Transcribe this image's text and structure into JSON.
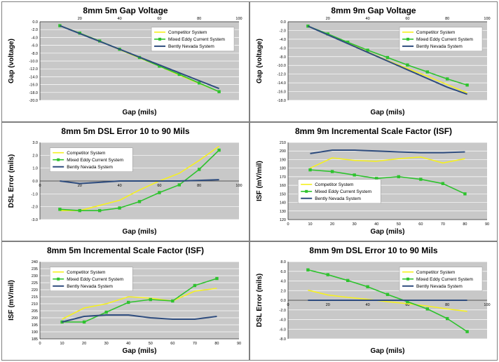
{
  "colors": {
    "competitor": "#f5f020",
    "mixed": "#2ec22e",
    "bently": "#2e4c7e",
    "plot_bg": "#c8c8c8",
    "grid": "#ffffff"
  },
  "chart_data": [
    {
      "type": "line",
      "title": "8mm 5m Gap Voltage",
      "xlabel": "Gap (mils)",
      "ylabel": "Gap (voltage)",
      "xlim": [
        0,
        100
      ],
      "ylim": [
        -20,
        0
      ],
      "xticks": [
        "20",
        "40",
        "60",
        "80",
        "100"
      ],
      "yticks": [
        "0.0",
        "-2.0",
        "-4.0",
        "-6.0",
        "-8.0",
        "-10.0",
        "-12.0",
        "-14.0",
        "-16.0",
        "-18.0",
        "-20.0"
      ],
      "x_axis_position": "top",
      "legend_position": "top-right",
      "series": [
        {
          "name": "Competitor System",
          "x": [
            10,
            20,
            30,
            40,
            50,
            60,
            70,
            80,
            90
          ],
          "y": [
            -1.0,
            -2.9,
            -4.9,
            -7.1,
            -9.2,
            -11.3,
            -13.6,
            -15.7,
            -17.8
          ]
        },
        {
          "name": "Mixed Eddy Current System",
          "x": [
            10,
            20,
            30,
            40,
            50,
            60,
            70,
            80,
            90
          ],
          "y": [
            -1.0,
            -2.9,
            -4.9,
            -7.0,
            -9.1,
            -11.3,
            -13.4,
            -15.6,
            -17.8
          ]
        },
        {
          "name": "Bently Nevada System",
          "x": [
            10,
            20,
            30,
            40,
            50,
            60,
            70,
            80,
            90
          ],
          "y": [
            -1.0,
            -3.0,
            -5.0,
            -7.0,
            -9.0,
            -11.0,
            -13.0,
            -15.0,
            -17.0
          ]
        }
      ]
    },
    {
      "type": "line",
      "title": "8mm 9m Gap Voltage",
      "xlabel": "Gap (mils)",
      "ylabel": "Gap (voltage)",
      "xlim": [
        0,
        100
      ],
      "ylim": [
        -18,
        0
      ],
      "xticks": [
        "20",
        "40",
        "60",
        "80",
        "100"
      ],
      "yticks": [
        "0.0",
        "-2.0",
        "-4.0",
        "-6.0",
        "-8.0",
        "-10.0",
        "-12.0",
        "-14.0",
        "-16.0",
        "-18.0"
      ],
      "x_axis_position": "top",
      "legend_position": "top-right",
      "series": [
        {
          "name": "Competitor System",
          "x": [
            10,
            20,
            30,
            40,
            50,
            60,
            70,
            80,
            90
          ],
          "y": [
            -1.0,
            -2.9,
            -4.9,
            -6.9,
            -8.9,
            -10.7,
            -12.5,
            -14.4,
            -16.3
          ]
        },
        {
          "name": "Mixed Eddy Current System",
          "x": [
            10,
            20,
            30,
            40,
            50,
            60,
            70,
            80,
            90
          ],
          "y": [
            -1.0,
            -2.8,
            -4.7,
            -6.5,
            -8.2,
            -9.9,
            -11.5,
            -13.1,
            -14.5
          ]
        },
        {
          "name": "Bently Nevada System",
          "x": [
            10,
            20,
            30,
            40,
            50,
            60,
            70,
            80,
            90
          ],
          "y": [
            -1.0,
            -3.0,
            -5.0,
            -7.0,
            -9.0,
            -11.0,
            -13.0,
            -15.0,
            -16.6
          ]
        }
      ]
    },
    {
      "type": "line",
      "title": "8mm 5m DSL Error 10 to 90 Mils",
      "xlabel": "Gap (mils)",
      "ylabel": "DSL Error (mils)",
      "xlim": [
        0,
        100
      ],
      "ylim": [
        -3,
        3
      ],
      "xticks": [
        "0",
        "20",
        "40",
        "60",
        "80",
        "100"
      ],
      "yticks": [
        "3.0",
        "2.0",
        "1.0",
        "0.0",
        "-1.0",
        "-2.0",
        "-3.0"
      ],
      "x_axis_position": "zero",
      "legend_position": "top-left",
      "series": [
        {
          "name": "Competitor System",
          "x": [
            10,
            20,
            30,
            40,
            50,
            60,
            70,
            80,
            90
          ],
          "y": [
            -2.3,
            -2.3,
            -1.9,
            -1.5,
            -0.7,
            0.0,
            0.6,
            1.6,
            2.7
          ]
        },
        {
          "name": "Mixed Eddy Current System",
          "x": [
            10,
            20,
            30,
            40,
            50,
            60,
            70,
            80,
            90
          ],
          "y": [
            -2.2,
            -2.3,
            -2.3,
            -2.1,
            -1.6,
            -0.9,
            -0.3,
            0.9,
            2.4
          ]
        },
        {
          "name": "Bently Nevada System",
          "x": [
            10,
            20,
            30,
            40,
            50,
            60,
            70,
            80,
            90
          ],
          "y": [
            0.0,
            -0.2,
            -0.1,
            0.0,
            0.0,
            0.0,
            0.0,
            0.05,
            0.1
          ]
        }
      ]
    },
    {
      "type": "line",
      "title": "8mm 9m Incremental Scale Factor (ISF)",
      "xlabel": "Gap (mils)",
      "ylabel": "ISF (mV/mil)",
      "xlim": [
        0,
        90
      ],
      "ylim": [
        120,
        210
      ],
      "xticks": [
        "0",
        "10",
        "20",
        "30",
        "40",
        "50",
        "60",
        "70",
        "80",
        "90"
      ],
      "yticks": [
        "210",
        "200",
        "190",
        "180",
        "170",
        "160",
        "150",
        "140",
        "130",
        "120"
      ],
      "x_axis_position": "bottom",
      "legend_position": "center-left",
      "series": [
        {
          "name": "Competitor System",
          "x": [
            10,
            20,
            30,
            40,
            50,
            60,
            70,
            80
          ],
          "y": [
            180,
            192,
            189,
            188,
            191,
            193,
            186,
            191
          ]
        },
        {
          "name": "Mixed Eddy Current System",
          "x": [
            10,
            20,
            30,
            40,
            50,
            60,
            70,
            80
          ],
          "y": [
            178,
            176,
            172,
            168,
            170,
            167,
            162,
            150
          ]
        },
        {
          "name": "Bently Nevada System",
          "x": [
            10,
            20,
            30,
            40,
            50,
            60,
            70,
            80
          ],
          "y": [
            197,
            201,
            201,
            200,
            199,
            198,
            198,
            199
          ]
        }
      ]
    },
    {
      "type": "line",
      "title": "8mm 5m Incremental Scale Factor (ISF)",
      "xlabel": "Gap (mils)",
      "ylabel": "ISF (mV/mil)",
      "xlim": [
        0,
        90
      ],
      "ylim": [
        185,
        240
      ],
      "xticks": [
        "0",
        "10",
        "20",
        "30",
        "40",
        "50",
        "60",
        "70",
        "80",
        "90"
      ],
      "yticks": [
        "240",
        "235",
        "230",
        "225",
        "220",
        "215",
        "210",
        "205",
        "200",
        "195",
        "190",
        "185"
      ],
      "x_axis_position": "bottom",
      "legend_position": "top-left",
      "series": [
        {
          "name": "Competitor System",
          "x": [
            10,
            20,
            30,
            40,
            50,
            60,
            70,
            80
          ],
          "y": [
            199,
            207,
            210,
            215,
            214,
            212,
            219,
            221
          ]
        },
        {
          "name": "Mixed Eddy Current System",
          "x": [
            10,
            20,
            30,
            40,
            50,
            60,
            70,
            80
          ],
          "y": [
            197,
            197,
            204,
            211,
            213,
            212,
            223,
            228
          ]
        },
        {
          "name": "Bently Nevada System",
          "x": [
            10,
            20,
            30,
            40,
            50,
            60,
            70,
            80
          ],
          "y": [
            197,
            201,
            202,
            202,
            200,
            199,
            199,
            201
          ]
        }
      ]
    },
    {
      "type": "line",
      "title": "8mm 9m DSL Error 10 to 90 Mils",
      "xlabel": "Gap (mils)",
      "ylabel": "DSL Error (mils)",
      "xlim": [
        0,
        100
      ],
      "ylim": [
        -8,
        8
      ],
      "xticks": [
        "0",
        "20",
        "40",
        "60",
        "80",
        "100"
      ],
      "yticks": [
        "8.0",
        "6.0",
        "4.0",
        "2.0",
        "0.0",
        "-2.0",
        "-4.0",
        "-6.0",
        "-8.0"
      ],
      "x_axis_position": "zero",
      "legend_position": "top-right",
      "series": [
        {
          "name": "Competitor System",
          "x": [
            10,
            20,
            30,
            40,
            50,
            60,
            70,
            80,
            90
          ],
          "y": [
            2.1,
            1.1,
            0.6,
            0.2,
            -0.3,
            -0.7,
            -1.2,
            -1.8,
            -2.3
          ]
        },
        {
          "name": "Mixed Eddy Current System",
          "x": [
            10,
            20,
            30,
            40,
            50,
            60,
            70,
            80,
            90
          ],
          "y": [
            6.3,
            5.3,
            4.1,
            2.8,
            1.2,
            -0.3,
            -1.8,
            -3.8,
            -6.5
          ]
        },
        {
          "name": "Bently Nevada System",
          "x": [
            10,
            20,
            30,
            40,
            50,
            60,
            70,
            80,
            90
          ],
          "y": [
            0.0,
            0.0,
            0.0,
            0.0,
            0.0,
            0.0,
            0.0,
            0.0,
            0.0
          ]
        }
      ]
    }
  ]
}
